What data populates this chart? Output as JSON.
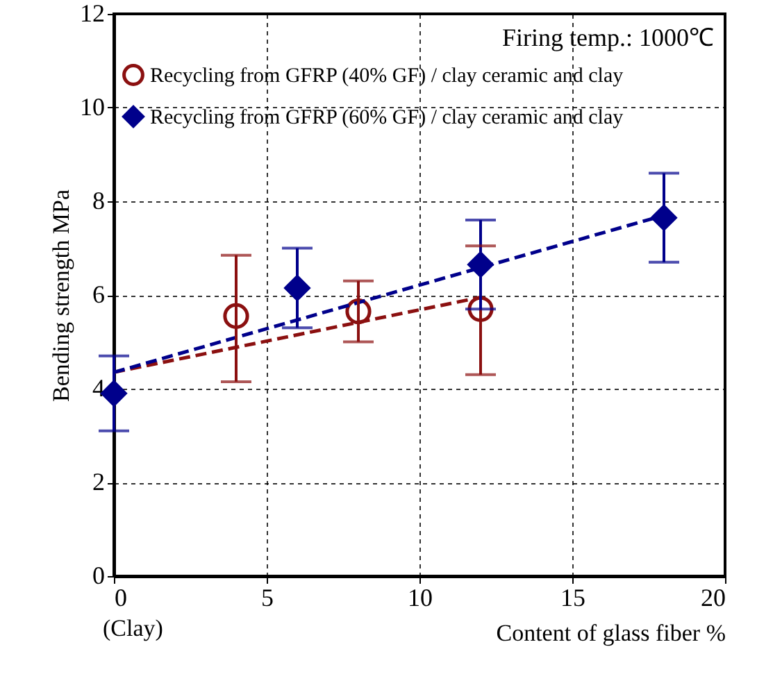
{
  "chart_data": {
    "type": "scatter",
    "xlabel": "Content of glass fiber %",
    "ylabel": "Bending strength MPa",
    "xlim": [
      0,
      20
    ],
    "xticks": [
      0,
      5,
      10,
      15,
      20
    ],
    "ylim": [
      0,
      12
    ],
    "yticks": [
      0,
      2,
      4,
      6,
      8,
      10,
      12
    ],
    "grid": true,
    "legend": "top left",
    "annotations": [
      "Firing temp.: 1000℃",
      "(Clay)"
    ],
    "series": [
      {
        "name": "Recycling from GFRP (40% GF) / clay ceramic and clay",
        "color": "#8b1010",
        "marker": "circle",
        "x": [
          4,
          8,
          12
        ],
        "values": [
          5.55,
          5.65,
          5.7
        ],
        "errors": [
          [
            4.15,
            6.85
          ],
          [
            5.0,
            6.3
          ],
          [
            4.3,
            7.05
          ]
        ]
      },
      {
        "name": "Recycling from GFRP (60% GF) / clay ceramic and clay",
        "color": "#00008b",
        "marker": "diamond",
        "x": [
          0,
          6,
          12,
          18
        ],
        "values": [
          3.9,
          6.15,
          6.65,
          7.65
        ],
        "errors": [
          [
            3.1,
            4.7
          ],
          [
            5.3,
            7.0
          ],
          [
            5.7,
            7.6
          ],
          [
            6.7,
            8.6
          ]
        ]
      },
      {
        "type": "line",
        "color": "#8b1010",
        "line_style": "dashed",
        "x": [
          0,
          12
        ],
        "values": [
          4.35,
          5.95
        ]
      },
      {
        "type": "line",
        "color": "#00008b",
        "line_style": "dashed",
        "x": [
          0,
          18
        ],
        "values": [
          4.35,
          7.7
        ]
      }
    ]
  }
}
